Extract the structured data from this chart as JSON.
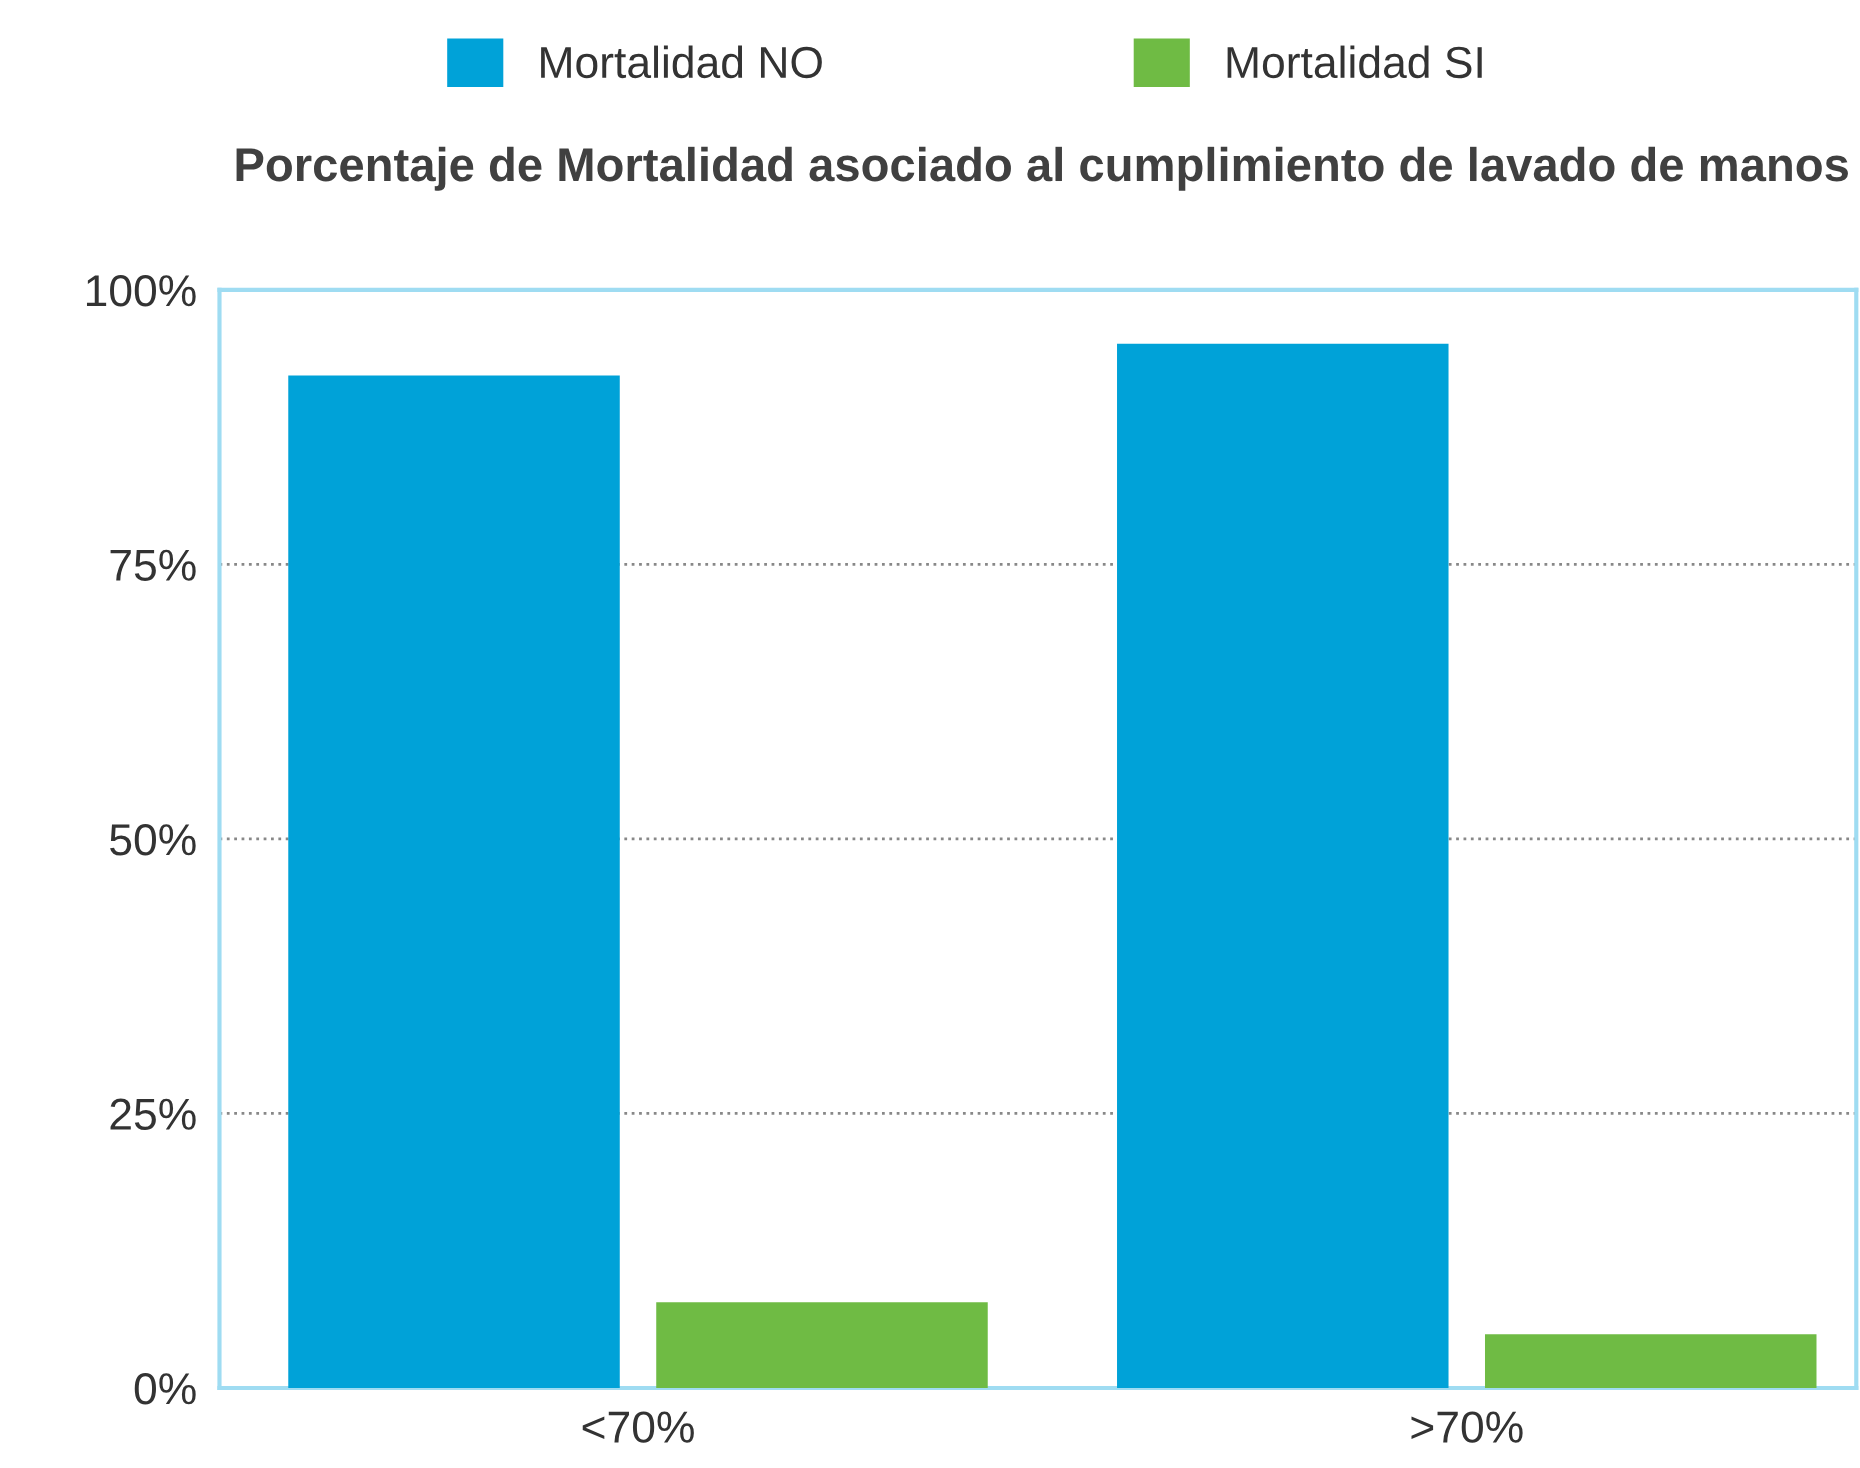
{
  "chart_data": {
    "type": "bar",
    "title": "Porcentaje de Mortalidad asociado al cumplimiento de lavado de manos",
    "categories": [
      "<70%",
      ">70%"
    ],
    "series": [
      {
        "name": "Mortalidad NO",
        "color": "#00a2d8",
        "values": [
          92.2,
          95.1
        ]
      },
      {
        "name": "Mortalidad SI",
        "color": "#6fbb44",
        "values": [
          7.8,
          4.9
        ]
      }
    ],
    "ylim": [
      0,
      100
    ],
    "yticks": [
      {
        "value": 0,
        "label": "0%"
      },
      {
        "value": 25,
        "label": "25%"
      },
      {
        "value": 50,
        "label": "50%"
      },
      {
        "value": 75,
        "label": "75%"
      },
      {
        "value": 100,
        "label": "100%"
      }
    ],
    "grid": "y",
    "legend": "top"
  }
}
